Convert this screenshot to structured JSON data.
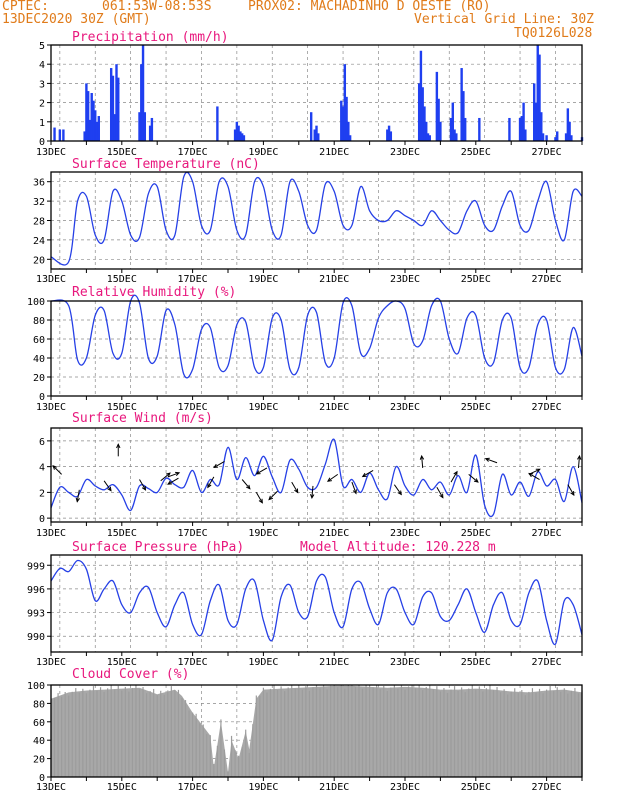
{
  "header": {
    "org": "CPTEC:",
    "coords": "061:53W-08:53S",
    "station": "PROX02: MACHADINHO D OESTE (RO)",
    "date": "13DEC2020 30Z (GMT)",
    "grid_note": "Vertical Grid Line: 30Z",
    "model_code": "TQ0126L028"
  },
  "chart_data": [
    {
      "type": "bar",
      "title": "Precipitation (mm/h)",
      "x_day_labels": [
        "13DEC",
        "15DEC",
        "17DEC",
        "19DEC",
        "21DEC",
        "23DEC",
        "25DEC",
        "27DEC"
      ],
      "ylim": [
        0,
        5
      ],
      "yticks": [
        "0",
        "1",
        "2",
        "3",
        "4",
        "5"
      ],
      "grid": true,
      "color": "#1f3ff0",
      "x_unit": "days since 13DEC 00Z",
      "bars": [
        [
          0.1,
          0.7
        ],
        [
          0.25,
          0.6
        ],
        [
          0.35,
          0.6
        ],
        [
          0.95,
          0.5
        ],
        [
          1.0,
          3.0
        ],
        [
          1.05,
          2.6
        ],
        [
          1.1,
          1.1
        ],
        [
          1.15,
          2.5
        ],
        [
          1.2,
          2.1
        ],
        [
          1.25,
          1.6
        ],
        [
          1.3,
          1.0
        ],
        [
          1.35,
          1.3
        ],
        [
          1.7,
          3.8
        ],
        [
          1.75,
          3.4
        ],
        [
          1.8,
          1.4
        ],
        [
          1.85,
          4.0
        ],
        [
          1.9,
          3.3
        ],
        [
          2.5,
          1.5
        ],
        [
          2.55,
          4.0
        ],
        [
          2.6,
          5.0
        ],
        [
          2.65,
          1.5
        ],
        [
          2.8,
          0.8
        ],
        [
          2.85,
          1.2
        ],
        [
          4.7,
          1.8
        ],
        [
          5.2,
          0.6
        ],
        [
          5.25,
          1.0
        ],
        [
          5.3,
          0.8
        ],
        [
          5.35,
          0.5
        ],
        [
          5.4,
          0.4
        ],
        [
          5.45,
          0.3
        ],
        [
          7.35,
          1.5
        ],
        [
          7.45,
          0.6
        ],
        [
          7.5,
          0.8
        ],
        [
          7.55,
          0.4
        ],
        [
          8.2,
          2.1
        ],
        [
          8.25,
          1.8
        ],
        [
          8.3,
          4.0
        ],
        [
          8.35,
          2.3
        ],
        [
          8.4,
          1.0
        ],
        [
          8.45,
          0.3
        ],
        [
          9.5,
          0.6
        ],
        [
          9.55,
          0.8
        ],
        [
          9.6,
          0.5
        ],
        [
          10.4,
          3.0
        ],
        [
          10.45,
          4.7
        ],
        [
          10.5,
          2.8
        ],
        [
          10.55,
          1.8
        ],
        [
          10.6,
          1.0
        ],
        [
          10.65,
          0.4
        ],
        [
          10.7,
          0.3
        ],
        [
          10.9,
          3.6
        ],
        [
          10.95,
          2.2
        ],
        [
          11.0,
          1.0
        ],
        [
          11.3,
          1.2
        ],
        [
          11.35,
          2.0
        ],
        [
          11.4,
          0.6
        ],
        [
          11.45,
          0.4
        ],
        [
          11.6,
          3.8
        ],
        [
          11.65,
          2.6
        ],
        [
          11.7,
          1.2
        ],
        [
          12.1,
          1.2
        ],
        [
          12.95,
          1.2
        ],
        [
          13.25,
          1.2
        ],
        [
          13.3,
          1.3
        ],
        [
          13.35,
          2.0
        ],
        [
          13.4,
          0.6
        ],
        [
          13.65,
          3.0
        ],
        [
          13.7,
          2.0
        ],
        [
          13.75,
          5.0
        ],
        [
          13.8,
          4.5
        ],
        [
          13.85,
          1.5
        ],
        [
          13.9,
          0.4
        ],
        [
          14.0,
          0.3
        ],
        [
          14.25,
          0.2
        ],
        [
          14.3,
          0.5
        ],
        [
          14.55,
          0.4
        ],
        [
          14.6,
          1.7
        ],
        [
          14.65,
          1.0
        ],
        [
          14.7,
          0.3
        ],
        [
          15.0,
          0.2
        ]
      ]
    },
    {
      "type": "line",
      "title": "Surface Temperature (nC)",
      "x_day_labels": [
        "13DEC",
        "15DEC",
        "17DEC",
        "19DEC",
        "21DEC",
        "23DEC",
        "25DEC",
        "27DEC"
      ],
      "ylim": [
        18,
        38
      ],
      "yticks": [
        "20",
        "24",
        "28",
        "32",
        "36"
      ],
      "grid": true,
      "color": "#2640e6",
      "x": [
        0,
        0.5,
        0.75,
        1,
        1.25,
        1.5,
        1.75,
        2,
        2.25,
        2.5,
        2.75,
        3,
        3.25,
        3.5,
        3.75,
        4,
        4.25,
        4.5,
        4.75,
        5,
        5.25,
        5.5,
        5.75,
        6,
        6.25,
        6.5,
        6.75,
        7,
        7.25,
        7.5,
        7.75,
        8,
        8.25,
        8.5,
        8.75,
        9,
        9.25,
        9.5,
        9.75,
        10,
        10.25,
        10.5,
        10.75,
        11,
        11.25,
        11.5,
        11.75,
        12,
        12.25,
        12.5,
        12.75,
        13,
        13.25,
        13.5,
        13.75,
        14,
        14.25,
        14.5,
        14.75,
        15
      ],
      "values": [
        20.5,
        19.5,
        32,
        33,
        25,
        24,
        34,
        32,
        25,
        24.5,
        33.5,
        35,
        26,
        25,
        37,
        36,
        27,
        26,
        36,
        35,
        26,
        25,
        36,
        35,
        26,
        25,
        36,
        34,
        27,
        26,
        35.5,
        34,
        27,
        27,
        35,
        30,
        28,
        28,
        30,
        29,
        28,
        27,
        30,
        28,
        26,
        25.5,
        30,
        32,
        27,
        26,
        31,
        34,
        27,
        26,
        32,
        36,
        28,
        24,
        34,
        33
      ]
    },
    {
      "type": "line",
      "title": "Relative Humidity (%)",
      "x_day_labels": [
        "13DEC",
        "15DEC",
        "17DEC",
        "19DEC",
        "21DEC",
        "23DEC",
        "25DEC",
        "27DEC"
      ],
      "ylim": [
        0,
        100
      ],
      "yticks": [
        "0",
        "20",
        "40",
        "60",
        "80",
        "100"
      ],
      "grid": true,
      "color": "#2640e6",
      "x": [
        0,
        0.5,
        0.75,
        1,
        1.25,
        1.5,
        1.75,
        2,
        2.25,
        2.5,
        2.75,
        3,
        3.25,
        3.5,
        3.75,
        4,
        4.25,
        4.5,
        4.75,
        5,
        5.25,
        5.5,
        5.75,
        6,
        6.25,
        6.5,
        6.75,
        7,
        7.25,
        7.5,
        7.75,
        8,
        8.25,
        8.5,
        8.75,
        9,
        9.25,
        9.5,
        9.75,
        10,
        10.25,
        10.5,
        10.75,
        11,
        11.25,
        11.5,
        11.75,
        12,
        12.25,
        12.5,
        12.75,
        13,
        13.25,
        13.5,
        13.75,
        14,
        14.25,
        14.5,
        14.75,
        15
      ],
      "values": [
        100,
        95,
        38,
        40,
        85,
        90,
        45,
        45,
        100,
        98,
        40,
        42,
        90,
        75,
        23,
        28,
        70,
        72,
        30,
        32,
        75,
        78,
        30,
        30,
        82,
        80,
        28,
        30,
        85,
        88,
        35,
        40,
        98,
        95,
        45,
        50,
        82,
        95,
        100,
        92,
        55,
        58,
        95,
        100,
        60,
        45,
        82,
        85,
        40,
        35,
        80,
        82,
        30,
        30,
        75,
        80,
        30,
        28,
        72,
        42
      ]
    },
    {
      "type": "line",
      "title": "Surface Wind (m/s)",
      "x_day_labels": [
        "13DEC",
        "15DEC",
        "17DEC",
        "19DEC",
        "21DEC",
        "23DEC",
        "25DEC",
        "27DEC"
      ],
      "ylim": [
        -0.3,
        7
      ],
      "yticks": [
        "0",
        "2",
        "4",
        "6"
      ],
      "grid": true,
      "color": "#2640e6",
      "x": [
        0,
        0.25,
        0.5,
        0.75,
        1,
        1.25,
        1.5,
        1.75,
        2,
        2.25,
        2.5,
        2.75,
        3,
        3.25,
        3.5,
        3.75,
        4,
        4.25,
        4.5,
        4.75,
        5,
        5.25,
        5.5,
        5.75,
        6,
        6.25,
        6.5,
        6.75,
        7,
        7.25,
        7.5,
        7.75,
        8,
        8.25,
        8.5,
        8.75,
        9,
        9.25,
        9.5,
        9.75,
        10,
        10.25,
        10.5,
        10.75,
        11,
        11.25,
        11.5,
        11.75,
        12,
        12.25,
        12.5,
        12.75,
        13,
        13.25,
        13.5,
        13.75,
        14,
        14.25,
        14.5,
        14.75,
        15
      ],
      "values": [
        0.8,
        2.4,
        2.0,
        1.7,
        3.0,
        2.5,
        2.2,
        2.6,
        1.8,
        0.6,
        2.5,
        2.3,
        2.0,
        3.1,
        2.6,
        2.4,
        3.7,
        2.0,
        3.0,
        2.6,
        5.5,
        3.0,
        4.7,
        3.3,
        4.8,
        3.2,
        2.0,
        4.5,
        3.8,
        2.4,
        2.4,
        4.2,
        6.1,
        2.5,
        3.0,
        2.0,
        3.5,
        2.2,
        1.5,
        4.0,
        2.5,
        1.8,
        3.0,
        2.2,
        2.8,
        1.8,
        3.3,
        2.0,
        4.9,
        1.0,
        0.3,
        3.4,
        1.8,
        2.8,
        1.7,
        3.6,
        2.5,
        3.0,
        1.3,
        4.0,
        1.2
      ],
      "arrows": [
        [
          0.3,
          3.4,
          135
        ],
        [
          0.8,
          2.2,
          -100
        ],
        [
          1.5,
          2.9,
          -55
        ],
        [
          1.9,
          4.8,
          90
        ],
        [
          2.5,
          3.0,
          -60
        ],
        [
          3.1,
          2.9,
          40
        ],
        [
          3.3,
          3.2,
          20
        ],
        [
          3.6,
          3.1,
          -150
        ],
        [
          4.6,
          3.2,
          -120
        ],
        [
          4.9,
          4.4,
          -150
        ],
        [
          5.4,
          3.0,
          -50
        ],
        [
          5.8,
          2.0,
          -60
        ],
        [
          6.1,
          3.9,
          -150
        ],
        [
          6.4,
          2.1,
          -135
        ],
        [
          6.8,
          2.8,
          -60
        ],
        [
          7.4,
          2.5,
          -95
        ],
        [
          8.1,
          3.4,
          -145
        ],
        [
          8.5,
          2.8,
          -70
        ],
        [
          9.1,
          3.7,
          -150
        ],
        [
          9.7,
          2.6,
          -55
        ],
        [
          10.5,
          3.9,
          95
        ],
        [
          10.9,
          2.4,
          -60
        ],
        [
          11.3,
          2.8,
          60
        ],
        [
          11.8,
          3.4,
          -40
        ],
        [
          12.6,
          4.3,
          160
        ],
        [
          13.5,
          3.4,
          25
        ],
        [
          13.8,
          3.0,
          150
        ],
        [
          14.6,
          2.6,
          -60
        ],
        [
          14.9,
          3.9,
          85
        ]
      ]
    },
    {
      "type": "line",
      "title": "Surface Pressure (hPa)",
      "annotation": "Model Altitude: 120.228 m",
      "x_day_labels": [
        "13DEC",
        "15DEC",
        "17DEC",
        "19DEC",
        "21DEC",
        "23DEC",
        "25DEC",
        "27DEC"
      ],
      "ylim": [
        988,
        1000.3
      ],
      "yticks": [
        "990",
        "993",
        "996",
        "999"
      ],
      "grid": true,
      "color": "#2640e6",
      "x": [
        0,
        0.25,
        0.5,
        0.75,
        1,
        1.25,
        1.5,
        1.75,
        2,
        2.25,
        2.5,
        2.75,
        3,
        3.25,
        3.5,
        3.75,
        4,
        4.25,
        4.5,
        4.75,
        5,
        5.25,
        5.5,
        5.75,
        6,
        6.25,
        6.5,
        6.75,
        7,
        7.25,
        7.5,
        7.75,
        8,
        8.25,
        8.5,
        8.75,
        9,
        9.25,
        9.5,
        9.75,
        10,
        10.25,
        10.5,
        10.75,
        11,
        11.25,
        11.5,
        11.75,
        12,
        12.25,
        12.5,
        12.75,
        13,
        13.25,
        13.5,
        13.75,
        14,
        14.25,
        14.5,
        14.75,
        15
      ],
      "values": [
        997,
        998.6,
        998.2,
        999.6,
        998.5,
        994.5,
        996,
        997,
        994,
        993,
        995.5,
        996.2,
        993,
        991.2,
        994,
        995.5,
        991.5,
        990.2,
        994.5,
        996.5,
        992,
        991.5,
        996,
        997,
        992,
        989.5,
        995,
        996.5,
        993,
        992.5,
        997,
        997.5,
        993,
        991.2,
        996,
        996.8,
        993.5,
        991.5,
        995.5,
        996,
        993,
        991.5,
        995,
        995.5,
        992.5,
        992,
        994,
        996,
        993,
        990.5,
        994,
        995.5,
        992,
        991.5,
        995.5,
        997,
        992,
        989,
        994.5,
        994,
        990.2
      ]
    },
    {
      "type": "bar",
      "title": "Cloud Cover (%)",
      "x_day_labels": [
        "13DEC",
        "15DEC",
        "17DEC",
        "19DEC",
        "21DEC",
        "23DEC",
        "25DEC",
        "27DEC"
      ],
      "ylim": [
        0,
        100
      ],
      "yticks": [
        "0",
        "20",
        "40",
        "60",
        "80",
        "100"
      ],
      "grid": true,
      "color": "#a8a8a8",
      "x": [
        0,
        0.5,
        1,
        1.5,
        2,
        2.5,
        3,
        3.5,
        3.7,
        4,
        4.2,
        4.5,
        4.6,
        4.8,
        5,
        5.1,
        5.3,
        5.5,
        5.6,
        5.8,
        6,
        6.5,
        7,
        7.5,
        8,
        8.5,
        9,
        9.5,
        10,
        10.5,
        11,
        11.5,
        12,
        12.5,
        13,
        13.5,
        14,
        14.5,
        15
      ],
      "values": [
        85,
        92,
        94,
        95,
        96,
        97,
        90,
        95,
        88,
        70,
        60,
        45,
        10,
        60,
        5,
        40,
        20,
        50,
        30,
        85,
        95,
        96,
        97,
        98,
        99,
        99,
        98,
        97,
        98,
        97,
        95,
        95,
        96,
        95,
        93,
        92,
        94,
        95,
        92
      ]
    }
  ]
}
